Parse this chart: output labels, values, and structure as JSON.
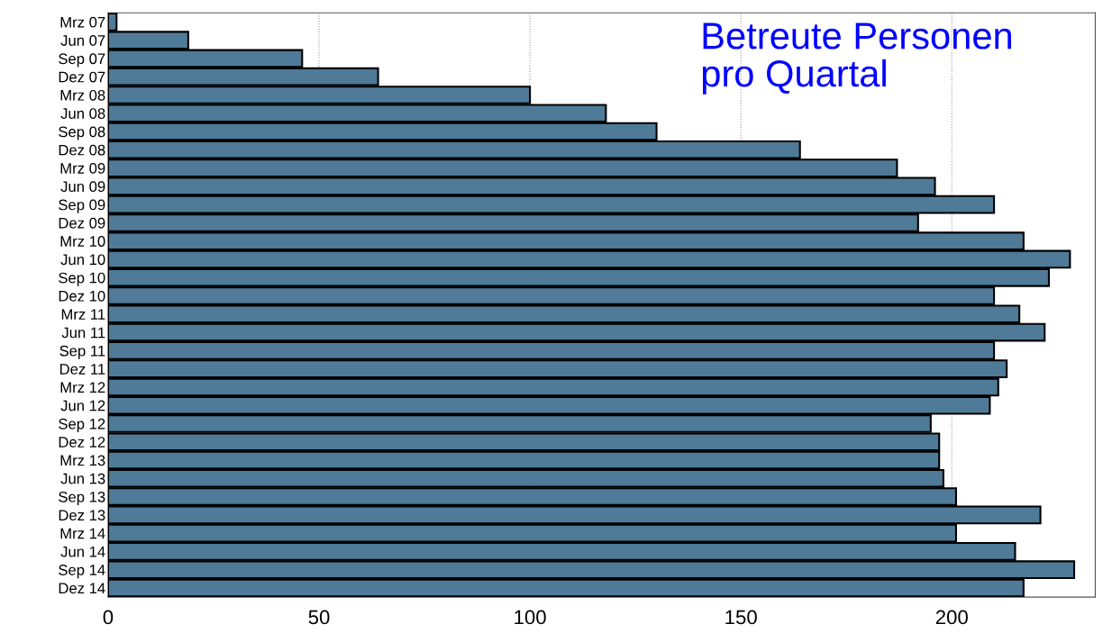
{
  "chart_data": {
    "type": "bar",
    "orientation": "horizontal",
    "title": "Betreute Personen\npro Quartal",
    "categories": [
      "Mrz 07",
      "Jun 07",
      "Sep 07",
      "Dez 07",
      "Mrz 08",
      "Jun 08",
      "Sep 08",
      "Dez 08",
      "Mrz 09",
      "Jun 09",
      "Sep 09",
      "Dez 09",
      "Mrz 10",
      "Jun 10",
      "Sep 10",
      "Dez 10",
      "Mrz 11",
      "Jun 11",
      "Sep 11",
      "Dez 11",
      "Mrz 12",
      "Jun 12",
      "Sep 12",
      "Dez 12",
      "Mrz 13",
      "Jun 13",
      "Sep 13",
      "Dez 13",
      "Mrz 14",
      "Jun 14",
      "Sep 14",
      "Dez 14"
    ],
    "values": [
      2,
      19,
      46,
      64,
      100,
      118,
      130,
      164,
      187,
      196,
      210,
      192,
      217,
      228,
      223,
      210,
      216,
      222,
      210,
      213,
      211,
      209,
      195,
      197,
      197,
      198,
      201,
      221,
      201,
      215,
      229,
      217
    ],
    "color": "#4f7a98",
    "xlim": [
      0,
      234
    ],
    "xticks": [
      0,
      50,
      100,
      150,
      200
    ],
    "grid": "x"
  }
}
